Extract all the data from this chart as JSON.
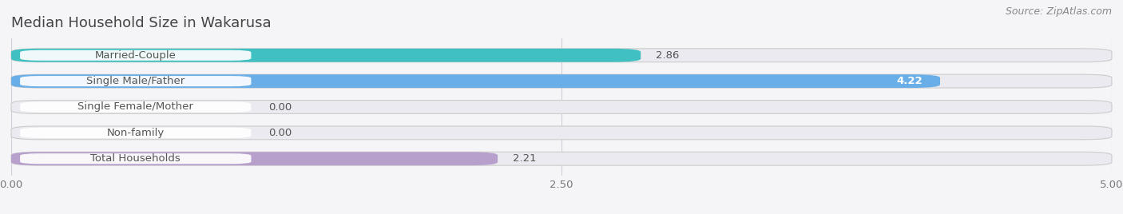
{
  "title": "Median Household Size in Wakarusa",
  "source": "Source: ZipAtlas.com",
  "categories": [
    "Married-Couple",
    "Single Male/Father",
    "Single Female/Mother",
    "Non-family",
    "Total Households"
  ],
  "values": [
    2.86,
    4.22,
    0.0,
    0.0,
    2.21
  ],
  "bar_colors": [
    "#40c0c0",
    "#6aaee8",
    "#f08090",
    "#f5c98a",
    "#b8a0cc"
  ],
  "bar_bg_color": "#eaeaf0",
  "xlim": [
    0,
    5.0
  ],
  "xticks": [
    0.0,
    2.5,
    5.0
  ],
  "xtick_labels": [
    "0.00",
    "2.50",
    "5.00"
  ],
  "title_fontsize": 13,
  "source_fontsize": 9,
  "label_fontsize": 9.5,
  "value_fontsize": 9.5,
  "background_color": "#f5f5f8",
  "bar_height": 0.52,
  "label_pill_color": "#ffffff",
  "label_text_color": "#555555",
  "value_text_color": "#555555",
  "grid_color": "#d0d0d8"
}
